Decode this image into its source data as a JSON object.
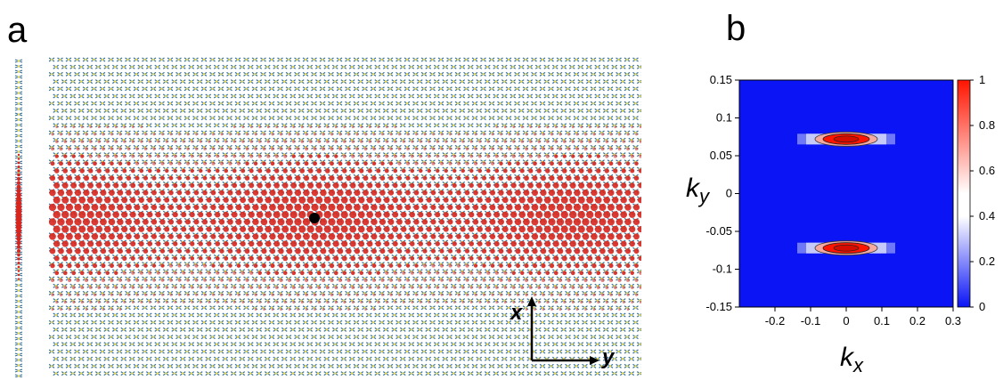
{
  "panels": {
    "a": {
      "label": "a",
      "axes": {
        "x": "x",
        "y": "y"
      },
      "colors": {
        "lattice_bond": "#2f6ea3",
        "lattice_atom": "#e8d857",
        "localized_state": "#d7261e",
        "marker": "#000000"
      }
    },
    "b": {
      "label": "b",
      "chart_data": {
        "type": "heatmap",
        "xlabel": "k",
        "xlabel_sub": "x",
        "ylabel": "k",
        "ylabel_sub": "y",
        "xlim": [
          -0.3,
          0.3
        ],
        "ylim": [
          -0.15,
          0.15
        ],
        "xticks": [
          "-0.2",
          "-0.1",
          "0",
          "0.1",
          "0.2",
          "0.3"
        ],
        "xtick_values": [
          -0.2,
          -0.1,
          0,
          0.1,
          0.2,
          0.3
        ],
        "yticks": [
          "0.15",
          "0.1",
          "0.05",
          "0",
          "-0.05",
          "-0.1",
          "-0.15"
        ],
        "ytick_values": [
          0.15,
          0.1,
          0.05,
          0,
          -0.05,
          -0.1,
          -0.15
        ],
        "colorbar": {
          "ticks": [
            "1",
            "0.8",
            "0.6",
            "0.4",
            "0.2",
            "0"
          ],
          "tick_values": [
            1,
            0.8,
            0.6,
            0.4,
            0.2,
            0
          ],
          "range": [
            0,
            1
          ]
        },
        "peaks": [
          {
            "kx": 0.0,
            "ky": 0.072,
            "value": 1.0
          },
          {
            "kx": 0.0,
            "ky": -0.072,
            "value": 1.0
          }
        ],
        "colors": {
          "low": "#0a14f5",
          "mid": "#ffffff",
          "high": "#ff1400"
        }
      }
    }
  }
}
